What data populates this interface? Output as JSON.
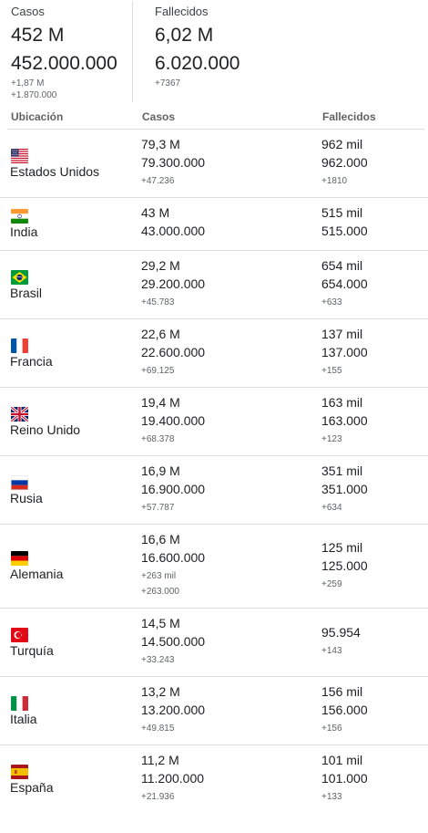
{
  "summary": {
    "casos": {
      "label": "Casos",
      "short": "452 M",
      "full": "452.000.000",
      "delta_short": "+1,87 M",
      "delta_full": "+1.870.000"
    },
    "fallecidos": {
      "label": "Fallecidos",
      "short": "6,02 M",
      "full": "6.020.000",
      "delta": "+7367"
    }
  },
  "table": {
    "headers": {
      "ubicacion": "Ubicación",
      "casos": "Casos",
      "fallecidos": "Fallecidos"
    },
    "rows": [
      {
        "country": "Estados Unidos",
        "flag": "us-flag-icon",
        "cases_short": "79,3 M",
        "cases_full": "79.300.000",
        "cases_delta": "+47.236",
        "deaths_short": "962 mil",
        "deaths_full": "962.000",
        "deaths_delta": "+1810"
      },
      {
        "country": "India",
        "flag": "india-flag-icon",
        "cases_short": "43 M",
        "cases_full": "43.000.000",
        "deaths_short": "515 mil",
        "deaths_full": "515.000"
      },
      {
        "country": "Brasil",
        "flag": "brazil-flag-icon",
        "cases_short": "29,2 M",
        "cases_full": "29.200.000",
        "cases_delta": "+45.783",
        "deaths_short": "654 mil",
        "deaths_full": "654.000",
        "deaths_delta": "+633"
      },
      {
        "country": "Francia",
        "flag": "france-flag-icon",
        "cases_short": "22,6 M",
        "cases_full": "22.600.000",
        "cases_delta": "+69.125",
        "deaths_short": "137 mil",
        "deaths_full": "137.000",
        "deaths_delta": "+155"
      },
      {
        "country": "Reino Unido",
        "flag": "uk-flag-icon",
        "cases_short": "19,4 M",
        "cases_full": "19.400.000",
        "cases_delta": "+68.378",
        "deaths_short": "163 mil",
        "deaths_full": "163.000",
        "deaths_delta": "+123"
      },
      {
        "country": "Rusia",
        "flag": "russia-flag-icon",
        "cases_short": "16,9 M",
        "cases_full": "16.900.000",
        "cases_delta": "+57.787",
        "deaths_short": "351 mil",
        "deaths_full": "351.000",
        "deaths_delta": "+634"
      },
      {
        "country": "Alemania",
        "flag": "germany-flag-icon",
        "cases_short": "16,6 M",
        "cases_full": "16.600.000",
        "cases_delta": "+263 mil",
        "cases_delta_full": "+263.000",
        "deaths_short": "125 mil",
        "deaths_full": "125.000",
        "deaths_delta": "+259"
      },
      {
        "country": "Turquía",
        "flag": "turkey-flag-icon",
        "cases_short": "14,5 M",
        "cases_full": "14.500.000",
        "cases_delta": "+33.243",
        "deaths_full": "95.954",
        "deaths_delta": "+143"
      },
      {
        "country": "Italia",
        "flag": "italy-flag-icon",
        "cases_short": "13,2 M",
        "cases_full": "13.200.000",
        "cases_delta": "+49.815",
        "deaths_short": "156 mil",
        "deaths_full": "156.000",
        "deaths_delta": "+156"
      },
      {
        "country": "España",
        "flag": "spain-flag-icon",
        "cases_short": "11,2 M",
        "cases_full": "11.200.000",
        "cases_delta": "+21.936",
        "deaths_short": "101 mil",
        "deaths_full": "101.000",
        "deaths_delta": "+133"
      }
    ]
  }
}
